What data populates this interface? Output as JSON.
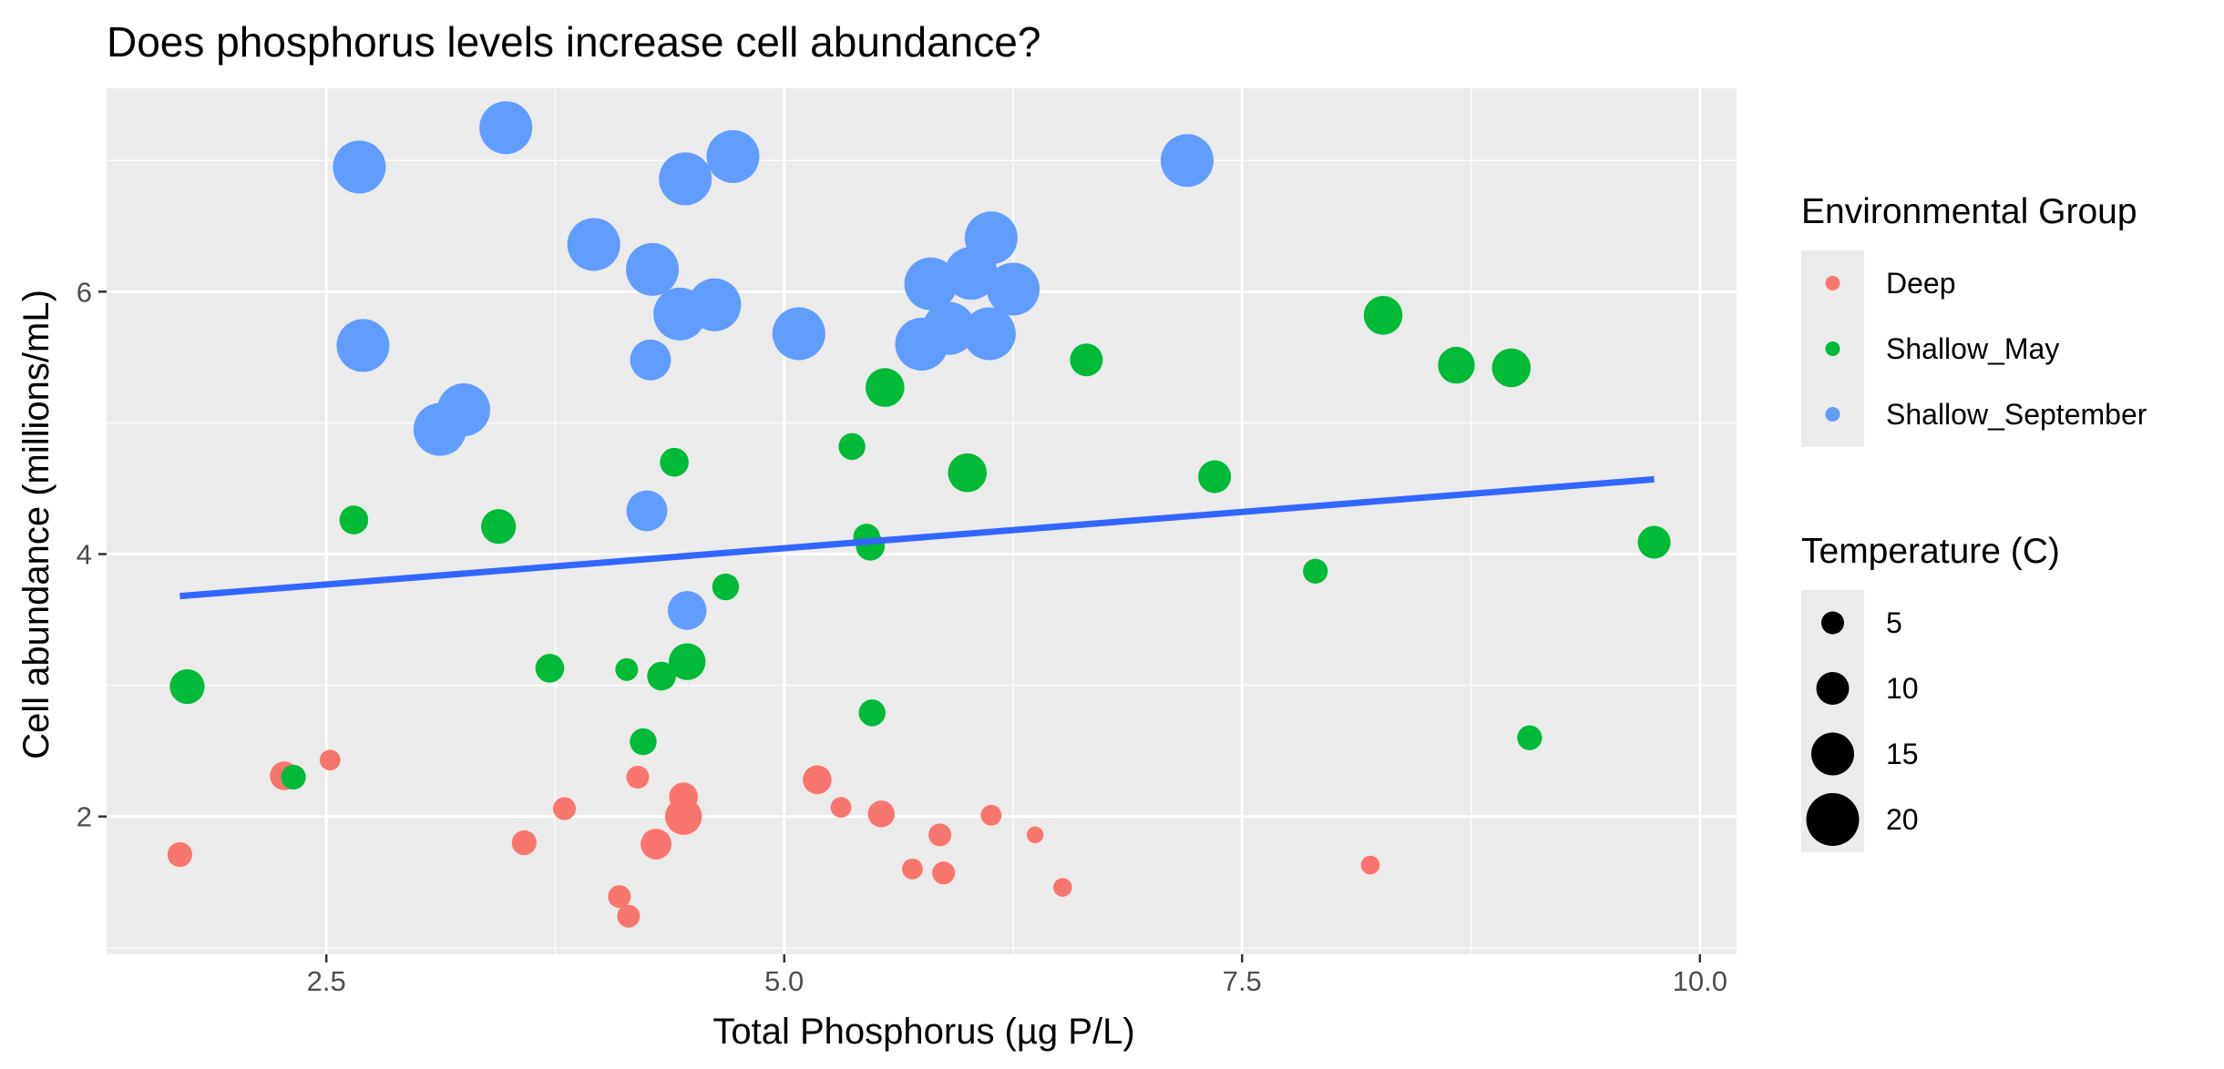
{
  "chart_data": {
    "type": "scatter",
    "title": "Does phosphorus levels increase cell abundance?",
    "xlabel": "Total Phosphorus (µg P/L)",
    "ylabel": "Cell abundance (millions/mL)",
    "xlim": [
      1.3,
      10.2
    ],
    "ylim": [
      0.95,
      7.55
    ],
    "x_ticks": [
      2.5,
      5.0,
      7.5,
      10.0
    ],
    "x_tick_labels": [
      "2.5",
      "5.0",
      "7.5",
      "10.0"
    ],
    "y_ticks": [
      2,
      4,
      6
    ],
    "y_tick_labels": [
      "2",
      "4",
      "6"
    ],
    "grid": true,
    "panel_background": "#ebebeb",
    "grid_color": "#ffffff",
    "legend_placement": "right",
    "color_legend": {
      "title": "Environmental Group",
      "entries": [
        {
          "label": "Deep",
          "color": "#f8766d"
        },
        {
          "label": "Shallow_May",
          "color": "#00ba38"
        },
        {
          "label": "Shallow_September",
          "color": "#619cff"
        }
      ]
    },
    "size_legend": {
      "title": "Temperature (C)",
      "entries": [
        {
          "label": "5",
          "value": 5
        },
        {
          "label": "10",
          "value": 10
        },
        {
          "label": "15",
          "value": 15
        },
        {
          "label": "20",
          "value": 20
        }
      ]
    },
    "trend_line": {
      "x": [
        1.7,
        9.75
      ],
      "y": [
        3.68,
        4.57
      ],
      "color": "#3366ff"
    },
    "series": [
      {
        "name": "Deep",
        "color": "#f8766d",
        "points": [
          {
            "x": 1.7,
            "y": 1.71,
            "temperature": 6
          },
          {
            "x": 2.27,
            "y": 2.31,
            "temperature": 8
          },
          {
            "x": 2.52,
            "y": 2.43,
            "temperature": 4
          },
          {
            "x": 3.58,
            "y": 1.8,
            "temperature": 6
          },
          {
            "x": 3.8,
            "y": 2.06,
            "temperature": 5
          },
          {
            "x": 4.1,
            "y": 1.39,
            "temperature": 5
          },
          {
            "x": 4.15,
            "y": 1.24,
            "temperature": 5
          },
          {
            "x": 4.2,
            "y": 2.3,
            "temperature": 5
          },
          {
            "x": 4.3,
            "y": 1.79,
            "temperature": 9
          },
          {
            "x": 4.45,
            "y": 2.15,
            "temperature": 8
          },
          {
            "x": 4.45,
            "y": 2.0,
            "temperature": 12
          },
          {
            "x": 5.18,
            "y": 2.28,
            "temperature": 8
          },
          {
            "x": 5.31,
            "y": 2.07,
            "temperature": 4
          },
          {
            "x": 5.53,
            "y": 2.02,
            "temperature": 7
          },
          {
            "x": 5.7,
            "y": 1.6,
            "temperature": 4
          },
          {
            "x": 5.85,
            "y": 1.86,
            "temperature": 5
          },
          {
            "x": 5.87,
            "y": 1.57,
            "temperature": 5
          },
          {
            "x": 6.13,
            "y": 2.01,
            "temperature": 4
          },
          {
            "x": 6.37,
            "y": 1.86,
            "temperature": 2
          },
          {
            "x": 6.52,
            "y": 1.46,
            "temperature": 3
          },
          {
            "x": 8.2,
            "y": 1.63,
            "temperature": 3
          }
        ]
      },
      {
        "name": "Shallow_May",
        "color": "#00ba38",
        "points": [
          {
            "x": 1.74,
            "y": 2.99,
            "temperature": 11
          },
          {
            "x": 2.32,
            "y": 2.3,
            "temperature": 6
          },
          {
            "x": 2.65,
            "y": 4.26,
            "temperature": 8
          },
          {
            "x": 3.44,
            "y": 4.21,
            "temperature": 11
          },
          {
            "x": 3.72,
            "y": 3.13,
            "temperature": 8
          },
          {
            "x": 4.14,
            "y": 3.12,
            "temperature": 5
          },
          {
            "x": 4.23,
            "y": 2.57,
            "temperature": 7
          },
          {
            "x": 4.33,
            "y": 3.07,
            "temperature": 8
          },
          {
            "x": 4.4,
            "y": 4.7,
            "temperature": 8
          },
          {
            "x": 4.47,
            "y": 3.18,
            "temperature": 12
          },
          {
            "x": 4.68,
            "y": 3.75,
            "temperature": 7
          },
          {
            "x": 5.37,
            "y": 4.82,
            "temperature": 7
          },
          {
            "x": 5.45,
            "y": 4.13,
            "temperature": 7
          },
          {
            "x": 5.47,
            "y": 4.06,
            "temperature": 8
          },
          {
            "x": 5.48,
            "y": 2.79,
            "temperature": 7
          },
          {
            "x": 5.55,
            "y": 5.27,
            "temperature": 13
          },
          {
            "x": 6.0,
            "y": 4.62,
            "temperature": 13
          },
          {
            "x": 6.65,
            "y": 5.48,
            "temperature": 10
          },
          {
            "x": 7.35,
            "y": 4.59,
            "temperature": 10
          },
          {
            "x": 7.9,
            "y": 3.87,
            "temperature": 6
          },
          {
            "x": 8.27,
            "y": 5.82,
            "temperature": 13
          },
          {
            "x": 8.67,
            "y": 5.44,
            "temperature": 12
          },
          {
            "x": 8.97,
            "y": 5.42,
            "temperature": 13
          },
          {
            "x": 9.07,
            "y": 2.6,
            "temperature": 6
          },
          {
            "x": 9.75,
            "y": 4.09,
            "temperature": 10
          }
        ]
      },
      {
        "name": "Shallow_September",
        "color": "#619cff",
        "points": [
          {
            "x": 2.68,
            "y": 6.95,
            "temperature": 20
          },
          {
            "x": 2.7,
            "y": 5.59,
            "temperature": 20
          },
          {
            "x": 3.12,
            "y": 4.95,
            "temperature": 20
          },
          {
            "x": 3.25,
            "y": 5.1,
            "temperature": 20
          },
          {
            "x": 3.48,
            "y": 7.25,
            "temperature": 20
          },
          {
            "x": 3.96,
            "y": 6.36,
            "temperature": 20
          },
          {
            "x": 4.25,
            "y": 4.33,
            "temperature": 14
          },
          {
            "x": 4.27,
            "y": 5.48,
            "temperature": 14
          },
          {
            "x": 4.28,
            "y": 6.17,
            "temperature": 20
          },
          {
            "x": 4.43,
            "y": 5.83,
            "temperature": 20
          },
          {
            "x": 4.46,
            "y": 6.86,
            "temperature": 20
          },
          {
            "x": 4.47,
            "y": 3.57,
            "temperature": 13
          },
          {
            "x": 4.62,
            "y": 5.9,
            "temperature": 20
          },
          {
            "x": 4.72,
            "y": 7.03,
            "temperature": 20
          },
          {
            "x": 5.08,
            "y": 5.68,
            "temperature": 20
          },
          {
            "x": 5.75,
            "y": 5.6,
            "temperature": 20
          },
          {
            "x": 5.8,
            "y": 6.06,
            "temperature": 20
          },
          {
            "x": 5.9,
            "y": 5.72,
            "temperature": 20
          },
          {
            "x": 6.02,
            "y": 6.14,
            "temperature": 20
          },
          {
            "x": 6.12,
            "y": 5.68,
            "temperature": 20
          },
          {
            "x": 6.13,
            "y": 6.41,
            "temperature": 20
          },
          {
            "x": 6.25,
            "y": 6.02,
            "temperature": 20
          },
          {
            "x": 7.2,
            "y": 7.0,
            "temperature": 20
          }
        ]
      }
    ]
  }
}
